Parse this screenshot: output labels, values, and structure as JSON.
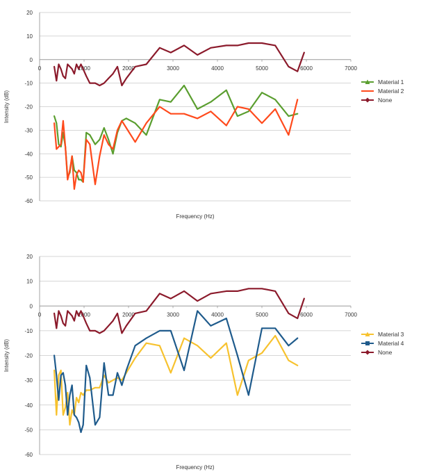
{
  "chart_data": [
    {
      "type": "line",
      "title": "",
      "xlabel": "Frequency (Hz)",
      "ylabel": "Intensity (dB)",
      "xlim": [
        0,
        7000
      ],
      "ylim": [
        -60,
        20
      ],
      "xticks": [
        "0",
        "1000",
        "2000",
        "3000",
        "4000",
        "5000",
        "6000",
        "7000"
      ],
      "yticks": [
        "20",
        "10",
        "0",
        "-10",
        "-20",
        "-30",
        "-40",
        "-50",
        "-60"
      ],
      "grid": true,
      "legend_position": "right",
      "series": [
        {
          "name": "Material 1",
          "color": "#5a9e2f",
          "marker": "triangle",
          "x": [
            330,
            380,
            430,
            480,
            530,
            580,
            630,
            680,
            730,
            780,
            830,
            880,
            930,
            980,
            1050,
            1130,
            1250,
            1350,
            1450,
            1550,
            1650,
            1750,
            1850,
            1950,
            2150,
            2400,
            2700,
            2950,
            3250,
            3550,
            3850,
            4200,
            4450,
            4700,
            5000,
            5300,
            5600,
            5800
          ],
          "y": [
            -24,
            -27,
            -36,
            -37,
            -31,
            -37,
            -50,
            -48,
            -41,
            -47,
            -48,
            -51,
            -51,
            -52,
            -31,
            -32,
            -36,
            -34,
            -29,
            -34,
            -40,
            -31,
            -26,
            -25,
            -27,
            -32,
            -17,
            -18,
            -11,
            -21,
            -18,
            -13,
            -24,
            -22,
            -14,
            -17,
            -24,
            -23
          ]
        },
        {
          "name": "Material 2",
          "color": "#ff4a1c",
          "marker": "none",
          "x": [
            330,
            380,
            430,
            480,
            530,
            580,
            630,
            680,
            730,
            780,
            830,
            880,
            930,
            980,
            1050,
            1130,
            1250,
            1350,
            1450,
            1550,
            1650,
            1750,
            1850,
            1950,
            2150,
            2400,
            2700,
            2950,
            3250,
            3550,
            3850,
            4200,
            4450,
            4700,
            5000,
            5300,
            5600,
            5800
          ],
          "y": [
            -27,
            -38,
            -37,
            -36,
            -26,
            -37,
            -51,
            -47,
            -41,
            -55,
            -49,
            -47,
            -48,
            -52,
            -34,
            -36,
            -53,
            -41,
            -32,
            -36,
            -38,
            -30,
            -26,
            -29,
            -35,
            -27,
            -20,
            -23,
            -23,
            -25,
            -22,
            -28,
            -20,
            -21,
            -27,
            -21,
            -32,
            -17
          ]
        },
        {
          "name": "None",
          "color": "#8b1a2b",
          "marker": "diamond",
          "x": [
            330,
            380,
            430,
            480,
            530,
            580,
            630,
            680,
            730,
            780,
            830,
            880,
            930,
            980,
            1050,
            1130,
            1250,
            1350,
            1450,
            1550,
            1650,
            1750,
            1850,
            1950,
            2150,
            2400,
            2700,
            2950,
            3250,
            3550,
            3850,
            4200,
            4450,
            4700,
            5000,
            5300,
            5600,
            5800,
            5950
          ],
          "y": [
            -3,
            -9,
            -2,
            -4,
            -7,
            -8,
            -2,
            -3,
            -4,
            -6,
            -2,
            -4,
            -2,
            -4,
            -7,
            -10,
            -10,
            -11,
            -10,
            -8,
            -6,
            -3,
            -11,
            -8,
            -3,
            -2,
            5,
            3,
            6,
            2,
            5,
            6,
            6,
            7,
            7,
            6,
            -3,
            -5,
            3
          ]
        }
      ]
    },
    {
      "type": "line",
      "title": "",
      "xlabel": "Frequency (Hz)",
      "ylabel": "Intensity (dB)",
      "xlim": [
        0,
        7000
      ],
      "ylim": [
        -60,
        20
      ],
      "xticks": [
        "0",
        "1000",
        "2000",
        "3000",
        "4000",
        "5000",
        "6000",
        "7000"
      ],
      "yticks": [
        "20",
        "10",
        "0",
        "-10",
        "-20",
        "-30",
        "-40",
        "-50",
        "-60"
      ],
      "grid": true,
      "legend_position": "right",
      "series": [
        {
          "name": "Material 3",
          "color": "#f7c22e",
          "marker": "triangle",
          "x": [
            330,
            380,
            430,
            480,
            530,
            580,
            630,
            680,
            730,
            780,
            830,
            880,
            930,
            980,
            1050,
            1130,
            1250,
            1350,
            1450,
            1550,
            1650,
            1750,
            1850,
            1950,
            2150,
            2400,
            2700,
            2950,
            3250,
            3550,
            3850,
            4200,
            4450,
            4700,
            5000,
            5300,
            5600,
            5800
          ],
          "y": [
            -26,
            -44,
            -28,
            -26,
            -44,
            -41,
            -35,
            -48,
            -42,
            -44,
            -37,
            -39,
            -35,
            -36,
            -34,
            -34,
            -33,
            -33,
            -28,
            -31,
            -30,
            -29,
            -30,
            -27,
            -21,
            -15,
            -16,
            -27,
            -13,
            -16,
            -21,
            -15,
            -36,
            -22,
            -19,
            -12,
            -22,
            -24
          ]
        },
        {
          "name": "Material 4",
          "color": "#1f5b8c",
          "marker": "square",
          "x": [
            330,
            380,
            430,
            480,
            530,
            580,
            630,
            680,
            730,
            780,
            830,
            880,
            930,
            980,
            1050,
            1130,
            1250,
            1350,
            1450,
            1550,
            1650,
            1750,
            1850,
            1950,
            2150,
            2400,
            2700,
            2950,
            3250,
            3550,
            3850,
            4200,
            4450,
            4700,
            5000,
            5300,
            5600,
            5800
          ],
          "y": [
            -20,
            -28,
            -38,
            -28,
            -27,
            -32,
            -44,
            -36,
            -32,
            -44,
            -45,
            -47,
            -51,
            -48,
            -24,
            -29,
            -48,
            -45,
            -23,
            -36,
            -36,
            -27,
            -32,
            -26,
            -16,
            -13,
            -10,
            -10,
            -26,
            -2,
            -8,
            -5,
            -20,
            -36,
            -9,
            -9,
            -16,
            -13
          ]
        },
        {
          "name": "None",
          "color": "#8b1a2b",
          "marker": "diamond",
          "x": [
            330,
            380,
            430,
            480,
            530,
            580,
            630,
            680,
            730,
            780,
            830,
            880,
            930,
            980,
            1050,
            1130,
            1250,
            1350,
            1450,
            1550,
            1650,
            1750,
            1850,
            1950,
            2150,
            2400,
            2700,
            2950,
            3250,
            3550,
            3850,
            4200,
            4450,
            4700,
            5000,
            5300,
            5600,
            5800,
            5950
          ],
          "y": [
            -3,
            -9,
            -2,
            -4,
            -7,
            -8,
            -2,
            -3,
            -4,
            -6,
            -2,
            -4,
            -2,
            -4,
            -7,
            -10,
            -10,
            -11,
            -10,
            -8,
            -6,
            -3,
            -11,
            -8,
            -3,
            -2,
            5,
            3,
            6,
            2,
            5,
            6,
            6,
            7,
            7,
            6,
            -3,
            -5,
            3
          ]
        }
      ]
    }
  ]
}
